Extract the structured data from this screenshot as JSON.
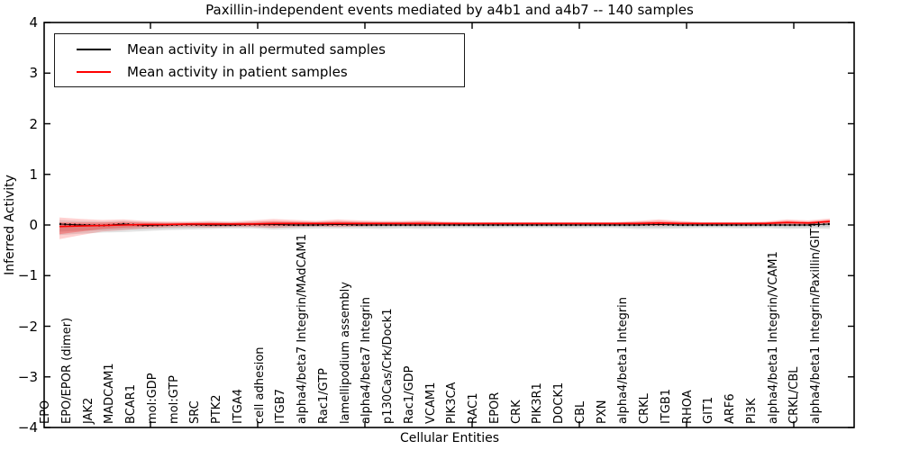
{
  "chart_data": {
    "type": "line",
    "title": "Paxillin-independent events mediated by a4b1 and a4b7 -- 140 samples",
    "xlabel": "Cellular Entities",
    "ylabel": "Inferred Activity",
    "ylim": [
      -4,
      4
    ],
    "yticks": [
      4,
      3,
      2,
      1,
      0,
      -1,
      -2,
      -3,
      -4
    ],
    "grid": false,
    "legend": {
      "position": "upper left",
      "entries": [
        {
          "label": "Mean activity in all permuted samples",
          "color": "#000000"
        },
        {
          "label": "Mean activity in patient samples",
          "color": "#ff0000"
        }
      ]
    },
    "categories": [
      "EPO",
      "EPO/EPOR (dimer)",
      "JAK2",
      "MADCAM1",
      "BCAR1",
      "mol:GDP",
      "mol:GTP",
      "SRC",
      "PTK2",
      "ITGA4",
      "cell adhesion",
      "ITGB7",
      "alpha4/beta7 Integrin/MAdCAM1",
      "Rac1/GTP",
      "lamellipodium assembly",
      "alpha4/beta7 Integrin",
      "p130Cas/Crk/Dock1",
      "Rac1/GDP",
      "VCAM1",
      "PIK3CA",
      "RAC1",
      "EPOR",
      "CRK",
      "PIK3R1",
      "DOCK1",
      "CBL",
      "PXN",
      "alpha4/beta1 Integrin",
      "CRKL",
      "ITGB1",
      "RHOA",
      "GIT1",
      "ARF6",
      "PI3K",
      "alpha4/beta1 Integrin/VCAM1",
      "CRKL/CBL",
      "alpha4/beta1 Integrin/Paxillin/GIT1"
    ],
    "series": [
      {
        "name": "Mean activity in all permuted samples",
        "color": "#000000",
        "style": "dotted-marker-line",
        "values": [
          0.02,
          0.0,
          -0.01,
          0.02,
          -0.01,
          0.0,
          0.01,
          0.0,
          0.0,
          0.01,
          0.01,
          0.0,
          0.0,
          0.01,
          0.0,
          0.0,
          0.0,
          0.0,
          0.0,
          0.0,
          0.0,
          0.0,
          0.0,
          0.0,
          0.0,
          0.0,
          0.0,
          0.0,
          0.01,
          0.0,
          0.0,
          0.0,
          0.0,
          0.0,
          0.0,
          0.0,
          0.02
        ]
      },
      {
        "name": "Mean activity in patient samples",
        "color": "#ff0000",
        "style": "solid-line",
        "values": [
          -0.03,
          -0.02,
          -0.01,
          0.0,
          0.01,
          0.01,
          0.02,
          0.02,
          0.02,
          0.02,
          0.03,
          0.03,
          0.03,
          0.03,
          0.03,
          0.03,
          0.03,
          0.03,
          0.03,
          0.03,
          0.03,
          0.03,
          0.03,
          0.03,
          0.03,
          0.03,
          0.03,
          0.03,
          0.04,
          0.03,
          0.03,
          0.03,
          0.03,
          0.03,
          0.05,
          0.04,
          0.07
        ]
      }
    ],
    "bands": [
      {
        "name": "permuted samples spread",
        "color": "#b0b0b0",
        "hi": [
          0.1,
          0.08,
          0.07,
          0.08,
          0.06,
          0.05,
          0.05,
          0.06,
          0.05,
          0.06,
          0.07,
          0.06,
          0.06,
          0.07,
          0.06,
          0.06,
          0.06,
          0.06,
          0.05,
          0.05,
          0.05,
          0.05,
          0.05,
          0.05,
          0.05,
          0.05,
          0.05,
          0.06,
          0.06,
          0.05,
          0.05,
          0.05,
          0.05,
          0.05,
          0.06,
          0.05,
          0.09
        ],
        "lo": [
          -0.2,
          -0.17,
          -0.15,
          -0.14,
          -0.12,
          -0.1,
          -0.09,
          -0.08,
          -0.07,
          -0.07,
          -0.09,
          -0.08,
          -0.07,
          -0.07,
          -0.07,
          -0.08,
          -0.07,
          -0.08,
          -0.07,
          -0.06,
          -0.07,
          -0.06,
          -0.06,
          -0.06,
          -0.07,
          -0.06,
          -0.06,
          -0.08,
          -0.08,
          -0.07,
          -0.06,
          -0.06,
          -0.07,
          -0.06,
          -0.08,
          -0.07,
          -0.08
        ]
      },
      {
        "name": "patient samples spread",
        "color": "#ff0000",
        "hi": [
          0.15,
          0.12,
          0.1,
          0.11,
          0.08,
          0.07,
          0.07,
          0.08,
          0.07,
          0.09,
          0.12,
          0.1,
          0.08,
          0.11,
          0.09,
          0.08,
          0.08,
          0.09,
          0.07,
          0.06,
          0.06,
          0.06,
          0.06,
          0.06,
          0.06,
          0.06,
          0.06,
          0.08,
          0.11,
          0.08,
          0.06,
          0.06,
          0.06,
          0.07,
          0.11,
          0.09,
          0.13
        ],
        "lo": [
          -0.28,
          -0.2,
          -0.13,
          -0.1,
          -0.07,
          -0.05,
          -0.04,
          -0.05,
          -0.04,
          -0.04,
          -0.06,
          -0.04,
          -0.03,
          -0.04,
          -0.03,
          -0.02,
          -0.02,
          -0.02,
          -0.01,
          -0.01,
          0.0,
          0.0,
          0.0,
          0.0,
          0.0,
          0.0,
          0.0,
          -0.01,
          -0.02,
          0.0,
          0.0,
          0.0,
          0.0,
          0.0,
          -0.01,
          0.0,
          0.02
        ]
      }
    ]
  }
}
